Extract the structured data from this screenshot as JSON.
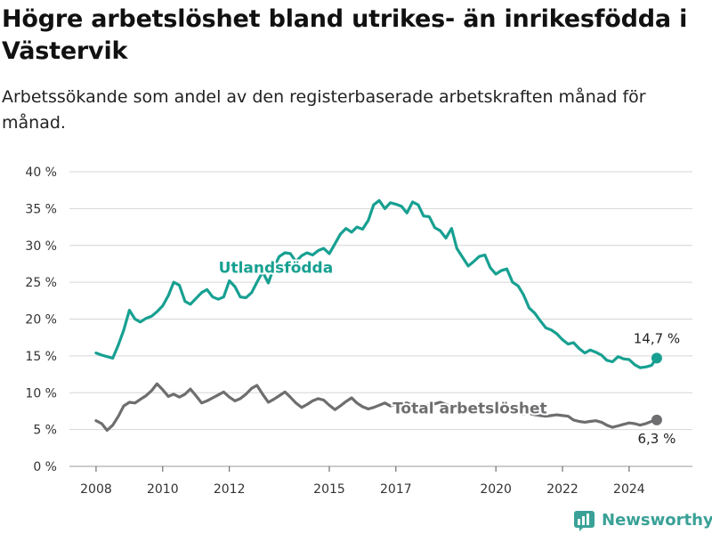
{
  "title": "Högre arbetslöshet bland utrikes- än inrikesfödda i Västervik",
  "subtitle": "Arbetssökande som andel av den registerbaserade arbetskraften månad för månad.",
  "brand": "Newsworthy",
  "colors": {
    "foreign": "#17a091",
    "total": "#6e6e70",
    "grid": "#d6d6d6",
    "brand": "#3aa197"
  },
  "chart_data": {
    "type": "line",
    "title": "Högre arbetslöshet bland utrikes- än inrikesfödda i Västervik",
    "subtitle": "Arbetssökande som andel av den registerbaserade arbetskraften månad för månad.",
    "xlabel": "",
    "ylabel": "",
    "ylim": [
      0,
      40
    ],
    "xlim": [
      2007.2,
      2025.9
    ],
    "grid": "horizontal",
    "yticks": [
      0,
      5,
      10,
      15,
      20,
      25,
      30,
      35,
      40
    ],
    "ytick_labels": [
      "0 %",
      "5 %",
      "10 %",
      "15 %",
      "20 %",
      "25 %",
      "30 %",
      "35 %",
      "40 %"
    ],
    "xticks": [
      2008,
      2010,
      2012,
      2015,
      2017,
      2020,
      2022,
      2024
    ],
    "xtick_labels": [
      "2008",
      "2010",
      "2012",
      "2015",
      "2017",
      "2020",
      "2022",
      "2024"
    ],
    "series": [
      {
        "name": "Utlandsfödda",
        "color": "#17a091",
        "end_label": "14,7 %",
        "x": [
          2008.0,
          2008.17,
          2008.33,
          2008.5,
          2008.67,
          2008.83,
          2009.0,
          2009.17,
          2009.33,
          2009.5,
          2009.67,
          2009.83,
          2010.0,
          2010.17,
          2010.33,
          2010.5,
          2010.67,
          2010.83,
          2011.0,
          2011.17,
          2011.33,
          2011.5,
          2011.67,
          2011.83,
          2012.0,
          2012.17,
          2012.33,
          2012.5,
          2012.67,
          2012.83,
          2013.0,
          2013.17,
          2013.33,
          2013.5,
          2013.67,
          2013.83,
          2014.0,
          2014.17,
          2014.33,
          2014.5,
          2014.67,
          2014.83,
          2015.0,
          2015.17,
          2015.33,
          2015.5,
          2015.67,
          2015.83,
          2016.0,
          2016.17,
          2016.33,
          2016.5,
          2016.67,
          2016.83,
          2017.0,
          2017.17,
          2017.33,
          2017.5,
          2017.67,
          2017.83,
          2018.0,
          2018.17,
          2018.33,
          2018.5,
          2018.67,
          2018.83,
          2019.0,
          2019.17,
          2019.33,
          2019.5,
          2019.67,
          2019.83,
          2020.0,
          2020.17,
          2020.33,
          2020.5,
          2020.67,
          2020.83,
          2021.0,
          2021.17,
          2021.33,
          2021.5,
          2021.67,
          2021.83,
          2022.0,
          2022.17,
          2022.33,
          2022.5,
          2022.67,
          2022.83,
          2023.0,
          2023.17,
          2023.33,
          2023.5,
          2023.67,
          2023.83,
          2024.0,
          2024.17,
          2024.33,
          2024.5,
          2024.67,
          2024.83
        ],
        "values": [
          15.4,
          15.1,
          14.9,
          14.7,
          16.5,
          18.5,
          21.2,
          20.0,
          19.6,
          20.1,
          20.4,
          21.0,
          21.8,
          23.2,
          25.0,
          24.6,
          22.4,
          22.0,
          22.8,
          23.6,
          24.0,
          23.0,
          22.7,
          23.0,
          25.2,
          24.4,
          23.0,
          22.9,
          23.6,
          25.0,
          26.4,
          24.9,
          27.0,
          28.5,
          29.0,
          28.9,
          27.8,
          28.6,
          29.0,
          28.7,
          29.3,
          29.6,
          28.9,
          30.2,
          31.5,
          32.3,
          31.8,
          32.5,
          32.2,
          33.4,
          35.5,
          36.1,
          35.0,
          35.8,
          35.6,
          35.3,
          34.4,
          35.9,
          35.5,
          34.0,
          33.9,
          32.4,
          32.0,
          31.0,
          32.3,
          29.6,
          28.4,
          27.2,
          27.8,
          28.5,
          28.7,
          27.0,
          26.1,
          26.6,
          26.8,
          25.0,
          24.5,
          23.3,
          21.5,
          20.8,
          19.8,
          18.8,
          18.5,
          18.0,
          17.2,
          16.6,
          16.8,
          16.0,
          15.4,
          15.8,
          15.5,
          15.1,
          14.4,
          14.2,
          14.9,
          14.6,
          14.5,
          13.8,
          13.4,
          13.5,
          13.7,
          14.7
        ]
      },
      {
        "name": "Total arbetslöshet",
        "color": "#6e6e70",
        "end_label": "6,3 %",
        "x": [
          2008.0,
          2008.17,
          2008.33,
          2008.5,
          2008.67,
          2008.83,
          2009.0,
          2009.17,
          2009.33,
          2009.5,
          2009.67,
          2009.83,
          2010.0,
          2010.17,
          2010.33,
          2010.5,
          2010.67,
          2010.83,
          2011.0,
          2011.17,
          2011.33,
          2011.5,
          2011.67,
          2011.83,
          2012.0,
          2012.17,
          2012.33,
          2012.5,
          2012.67,
          2012.83,
          2013.0,
          2013.17,
          2013.33,
          2013.5,
          2013.67,
          2013.83,
          2014.0,
          2014.17,
          2014.33,
          2014.5,
          2014.67,
          2014.83,
          2015.0,
          2015.17,
          2015.33,
          2015.5,
          2015.67,
          2015.83,
          2016.0,
          2016.17,
          2016.33,
          2016.5,
          2016.67,
          2016.83,
          2017.0,
          2017.17,
          2017.33,
          2017.5,
          2017.67,
          2017.83,
          2018.0,
          2018.17,
          2018.33,
          2018.5,
          2018.67,
          2018.83,
          2019.0,
          2019.17,
          2019.33,
          2019.5,
          2019.67,
          2019.83,
          2020.0,
          2020.17,
          2020.33,
          2020.5,
          2020.67,
          2020.83,
          2021.0,
          2021.17,
          2021.33,
          2021.5,
          2021.67,
          2021.83,
          2022.0,
          2022.17,
          2022.33,
          2022.5,
          2022.67,
          2022.83,
          2023.0,
          2023.17,
          2023.33,
          2023.5,
          2023.67,
          2023.83,
          2024.0,
          2024.17,
          2024.33,
          2024.5,
          2024.67,
          2024.83
        ],
        "values": [
          6.2,
          5.8,
          4.9,
          5.6,
          6.8,
          8.2,
          8.7,
          8.6,
          9.1,
          9.6,
          10.3,
          11.2,
          10.4,
          9.5,
          9.8,
          9.4,
          9.8,
          10.5,
          9.6,
          8.6,
          8.9,
          9.3,
          9.7,
          10.1,
          9.4,
          8.9,
          9.2,
          9.8,
          10.6,
          11.0,
          9.8,
          8.7,
          9.1,
          9.6,
          10.1,
          9.4,
          8.6,
          8.0,
          8.4,
          8.9,
          9.2,
          9.0,
          8.3,
          7.7,
          8.2,
          8.8,
          9.3,
          8.6,
          8.1,
          7.8,
          8.0,
          8.3,
          8.6,
          8.2,
          8.4,
          8.5,
          8.6,
          8.3,
          8.0,
          8.1,
          8.3,
          8.5,
          8.7,
          8.4,
          8.1,
          8.0,
          7.9,
          8.1,
          8.0,
          7.7,
          7.5,
          7.6,
          7.8,
          7.9,
          7.7,
          7.4,
          7.3,
          7.1,
          7.2,
          7.0,
          6.9,
          6.8,
          6.9,
          7.0,
          6.9,
          6.8,
          6.3,
          6.1,
          6.0,
          6.1,
          6.2,
          6.0,
          5.6,
          5.3,
          5.5,
          5.7,
          5.9,
          5.8,
          5.6,
          5.8,
          6.1,
          6.3
        ]
      }
    ]
  }
}
